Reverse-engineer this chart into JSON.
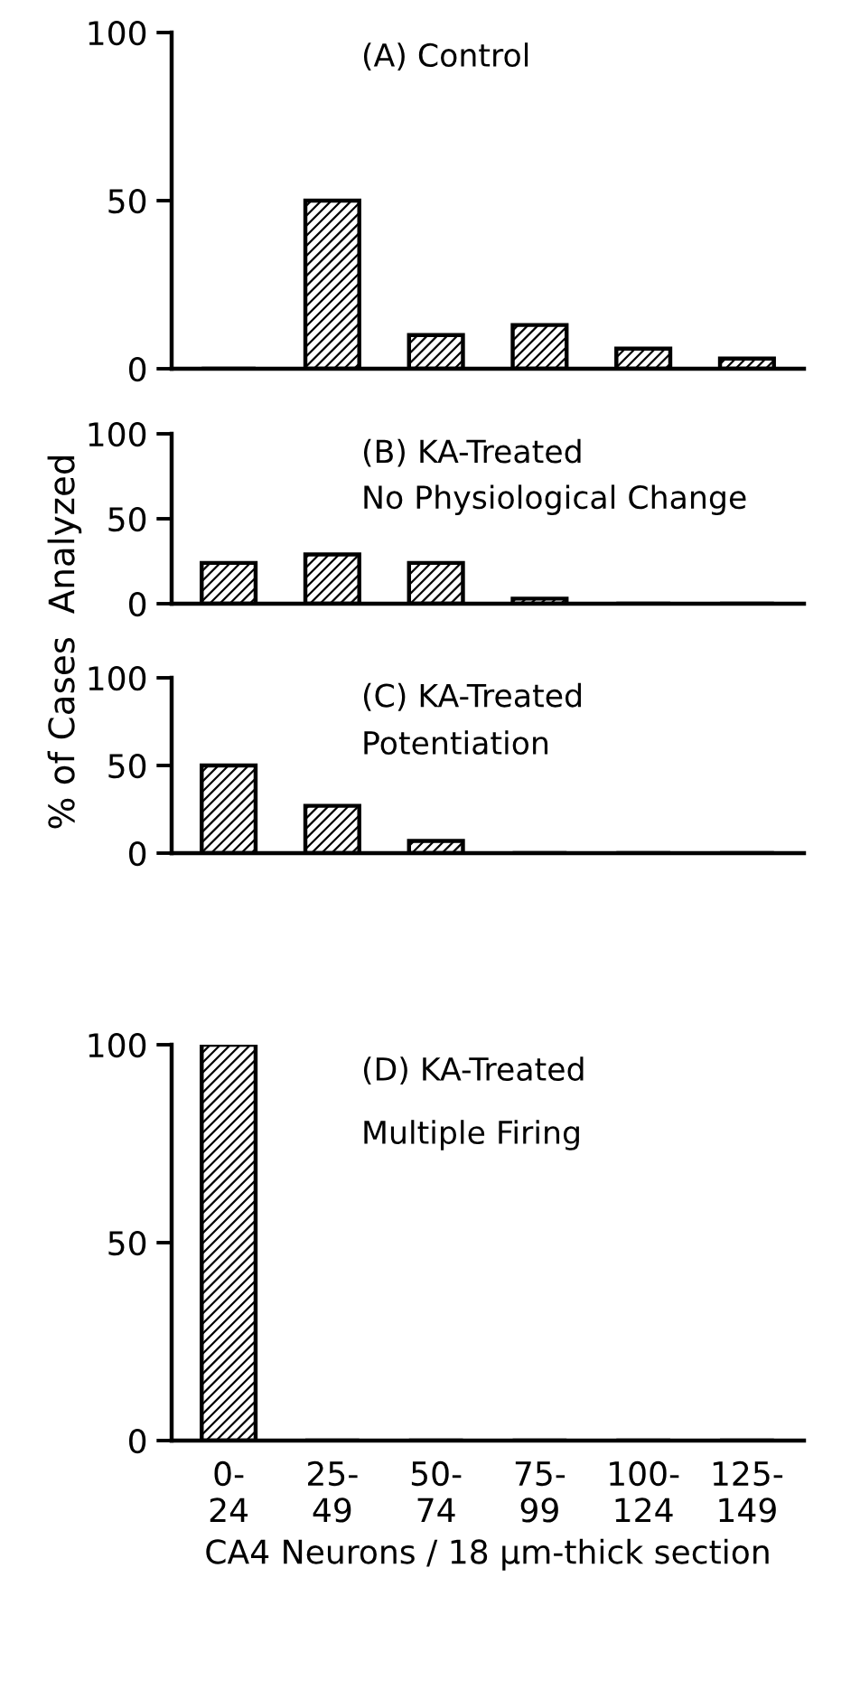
{
  "chart_data": [
    {
      "type": "bar",
      "title": "(A) Control",
      "values": [
        0,
        50,
        10,
        13,
        6,
        3
      ],
      "color": "#000000",
      "ylim": [
        0,
        100
      ],
      "yticks": [
        0,
        50,
        100
      ],
      "grid": false,
      "tick_labels": "y"
    },
    {
      "type": "bar",
      "title": "(B) KA-Treated",
      "subtitle": "No Physiological Change",
      "ylabel": "% of Cases  Analyzed",
      "values": [
        24,
        29,
        24,
        3,
        0,
        0
      ],
      "color": "#000000",
      "ylim": [
        0,
        100
      ],
      "yticks": [
        0,
        50,
        100
      ],
      "grid": false,
      "tick_labels": "y"
    },
    {
      "type": "bar",
      "title": "(C) KA-Treated",
      "subtitle": "Potentiation",
      "values": [
        50,
        27,
        7,
        0,
        0,
        0
      ],
      "color": "#000000",
      "ylim": [
        0,
        100
      ],
      "yticks": [
        0,
        50,
        100
      ],
      "grid": false,
      "tick_labels": "y"
    },
    {
      "type": "bar",
      "title": "(D) KA-Treated",
      "subtitle": "Multiple Firing",
      "xlabel": "CA4 Neurons / 18 μm-thick section",
      "categories": [
        "0-24",
        "25-49",
        "50-74",
        "75-99",
        "100-124",
        "125-149"
      ],
      "values": [
        100,
        0,
        0,
        0,
        0,
        0
      ],
      "color": "#000000",
      "ylim": [
        0,
        100
      ],
      "yticks": [
        0,
        50,
        100
      ],
      "grid": false
    }
  ]
}
